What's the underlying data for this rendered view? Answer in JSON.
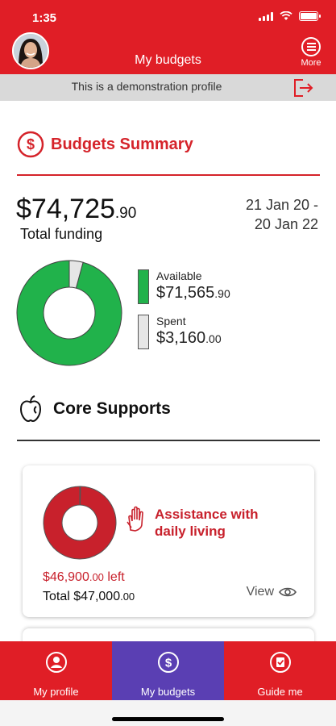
{
  "status": {
    "time": "1:35"
  },
  "header": {
    "title": "My budgets",
    "more_label": "More"
  },
  "demo_banner": {
    "text": "This is a demonstration profile"
  },
  "summary": {
    "title": "Budgets Summary",
    "total_amount_main": "$74,725",
    "total_amount_cents": ".90",
    "total_label": "Total funding",
    "date_start": "21 Jan 20 -",
    "date_end": "20 Jan 22",
    "available_label": "Available",
    "available_main": "$71,565",
    "available_cents": ".90",
    "spent_label": "Spent",
    "spent_main": "$3,160",
    "spent_cents": ".00",
    "available_value": 71565.9,
    "spent_value": 3160.0
  },
  "core": {
    "title": "Core Supports",
    "card": {
      "category": "Assistance with daily living",
      "left_main": "$46,900",
      "left_cents": ".00",
      "left_suffix": " left",
      "total_prefix": "Total ",
      "total_main": "$47,000",
      "total_cents": ".00",
      "view_label": "View",
      "left_value": 46900,
      "total_value": 47000
    }
  },
  "tabs": [
    {
      "label": "My profile",
      "icon": "person-icon"
    },
    {
      "label": "My budgets",
      "icon": "dollar-icon"
    },
    {
      "label": "Guide me",
      "icon": "checklist-icon"
    }
  ],
  "colors": {
    "brand_red": "#e01e26",
    "available_green": "#21b24b",
    "spent_grey": "#e6e6e6",
    "active_tab": "#5a3fb3",
    "card_red": "#c8212c"
  }
}
